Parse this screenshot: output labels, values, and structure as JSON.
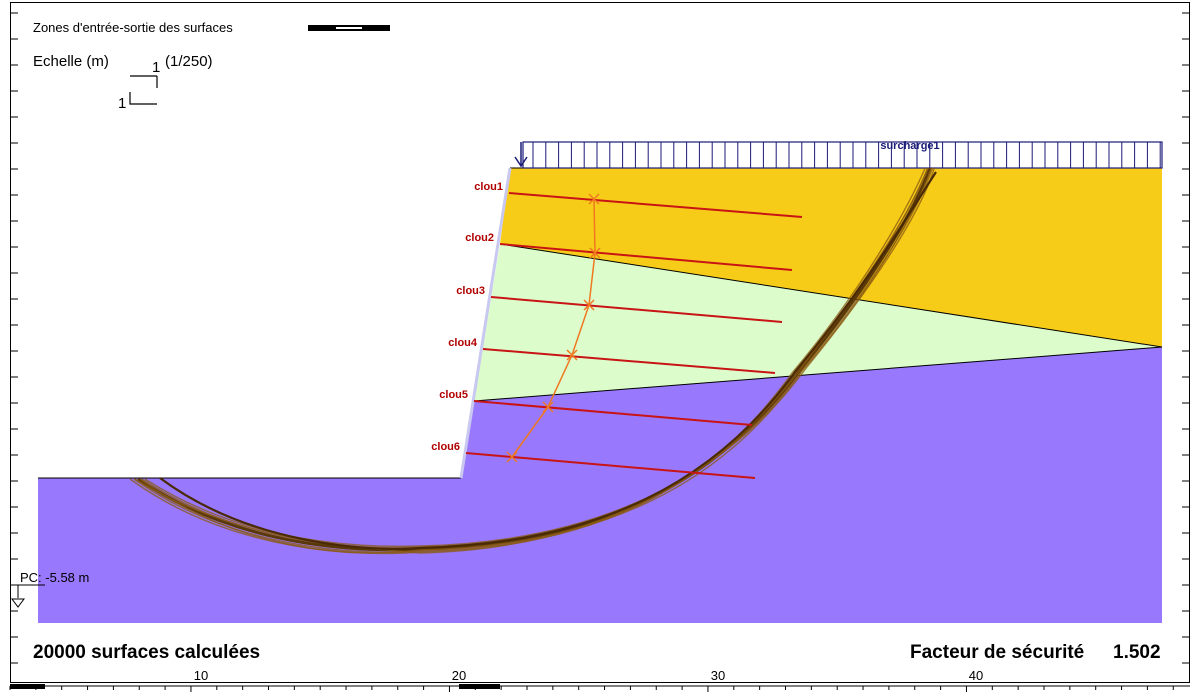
{
  "header": {
    "zones_label": "Zones d'entrée-sortie des surfaces",
    "scale_label": "Echelle (m)",
    "scale_ratio": "(1/250)",
    "scale_unit_h": "1",
    "scale_unit_v": "1"
  },
  "surcharge": {
    "label": "surcharge1"
  },
  "nails": [
    {
      "label": "clou1"
    },
    {
      "label": "clou2"
    },
    {
      "label": "clou3"
    },
    {
      "label": "clou4"
    },
    {
      "label": "clou5"
    },
    {
      "label": "clou6"
    }
  ],
  "water": {
    "label": "PC: -5.58 m"
  },
  "footer": {
    "surfaces_label": "20000 surfaces calculées",
    "factor_label": "Facteur de sécurité",
    "factor_value": "1.502"
  },
  "x_axis": {
    "ticks": [
      "10",
      "20",
      "30",
      "40"
    ]
  },
  "colors": {
    "upper_layer": "#f6cc18",
    "middle_layer": "#dcfccc",
    "lower_layer": "#9878fc",
    "nail": "#c81414",
    "force_line": "#f07820",
    "slip_surface": "#8a5a10",
    "surcharge": "#1a1a78",
    "facing": "#c8c8f0"
  }
}
